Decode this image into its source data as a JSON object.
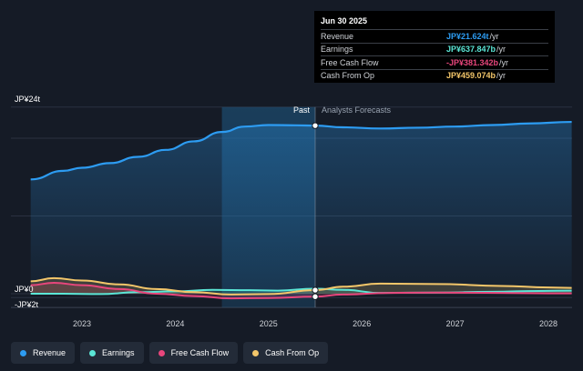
{
  "chart_data": {
    "type": "area",
    "x_ticks": [
      "2023",
      "2024",
      "2025",
      "2026",
      "2027",
      "2028"
    ],
    "y_tick_labels": [
      "JP¥24t",
      "JP¥0",
      "-JP¥2t"
    ],
    "ylim": [
      -2,
      24
    ],
    "past_label": "Past",
    "forecast_label": "Analysts Forecasts",
    "series": [
      {
        "name": "Revenue",
        "color": "#2d9cf2",
        "points": [
          [
            2022.45,
            14.7
          ],
          [
            2022.8,
            15.8
          ],
          [
            2023.0,
            16.2
          ],
          [
            2023.3,
            16.8
          ],
          [
            2023.6,
            17.6
          ],
          [
            2023.9,
            18.5
          ],
          [
            2024.2,
            19.6
          ],
          [
            2024.5,
            20.8
          ],
          [
            2024.75,
            21.5
          ],
          [
            2025.0,
            21.7
          ],
          [
            2025.3,
            21.66
          ],
          [
            2025.5,
            21.62
          ],
          [
            2025.8,
            21.4
          ],
          [
            2026.2,
            21.25
          ],
          [
            2026.6,
            21.35
          ],
          [
            2027.0,
            21.5
          ],
          [
            2027.4,
            21.7
          ],
          [
            2027.8,
            21.9
          ],
          [
            2028.25,
            22.1
          ]
        ]
      },
      {
        "name": "Earnings",
        "color": "#5be6d6",
        "points": [
          [
            2022.45,
            0.0
          ],
          [
            2022.8,
            0.0
          ],
          [
            2023.2,
            -0.05
          ],
          [
            2023.6,
            0.2
          ],
          [
            2024.0,
            0.3
          ],
          [
            2024.4,
            0.5
          ],
          [
            2024.8,
            0.45
          ],
          [
            2025.1,
            0.4
          ],
          [
            2025.5,
            0.64
          ],
          [
            2025.8,
            0.5
          ],
          [
            2026.2,
            0.1
          ],
          [
            2026.8,
            0.15
          ],
          [
            2027.4,
            0.25
          ],
          [
            2027.9,
            0.35
          ],
          [
            2028.25,
            0.4
          ]
        ]
      },
      {
        "name": "Free Cash Flow",
        "color": "#e8467c",
        "points": [
          [
            2022.45,
            1.1
          ],
          [
            2022.7,
            1.4
          ],
          [
            2023.0,
            1.1
          ],
          [
            2023.4,
            0.6
          ],
          [
            2023.8,
            0.0
          ],
          [
            2024.2,
            -0.3
          ],
          [
            2024.6,
            -0.6
          ],
          [
            2025.0,
            -0.55
          ],
          [
            2025.5,
            -0.38
          ],
          [
            2025.8,
            -0.1
          ],
          [
            2026.3,
            0.1
          ],
          [
            2026.8,
            0.15
          ],
          [
            2027.5,
            0.1
          ],
          [
            2028.0,
            0.05
          ],
          [
            2028.25,
            0.05
          ]
        ]
      },
      {
        "name": "Cash From Op",
        "color": "#f3c66a",
        "points": [
          [
            2022.45,
            1.6
          ],
          [
            2022.7,
            2.0
          ],
          [
            2023.0,
            1.7
          ],
          [
            2023.4,
            1.2
          ],
          [
            2023.8,
            0.6
          ],
          [
            2024.2,
            0.2
          ],
          [
            2024.6,
            -0.1
          ],
          [
            2025.0,
            -0.05
          ],
          [
            2025.5,
            0.46
          ],
          [
            2025.8,
            0.9
          ],
          [
            2026.2,
            1.3
          ],
          [
            2026.8,
            1.25
          ],
          [
            2027.5,
            1.0
          ],
          [
            2028.0,
            0.8
          ],
          [
            2028.25,
            0.75
          ]
        ]
      }
    ],
    "tooltip": {
      "date": "Jun 30 2025",
      "rows": [
        {
          "label": "Revenue",
          "value": "JP¥21.624t",
          "unit": "/yr",
          "color": "#2d9cf2"
        },
        {
          "label": "Earnings",
          "value": "JP¥637.847b",
          "unit": "/yr",
          "color": "#5be6d6"
        },
        {
          "label": "Free Cash Flow",
          "value": "-JP¥381.342b",
          "unit": "/yr",
          "color": "#e8467c"
        },
        {
          "label": "Cash From Op",
          "value": "JP¥459.074b",
          "unit": "/yr",
          "color": "#f3c66a"
        }
      ]
    },
    "marker_x": 2025.5,
    "marker_points": [
      21.62,
      0.46,
      -0.38
    ]
  },
  "legend": [
    {
      "label": "Revenue",
      "color": "#2d9cf2"
    },
    {
      "label": "Earnings",
      "color": "#5be6d6"
    },
    {
      "label": "Free Cash Flow",
      "color": "#e8467c"
    },
    {
      "label": "Cash From Op",
      "color": "#f3c66a"
    }
  ]
}
